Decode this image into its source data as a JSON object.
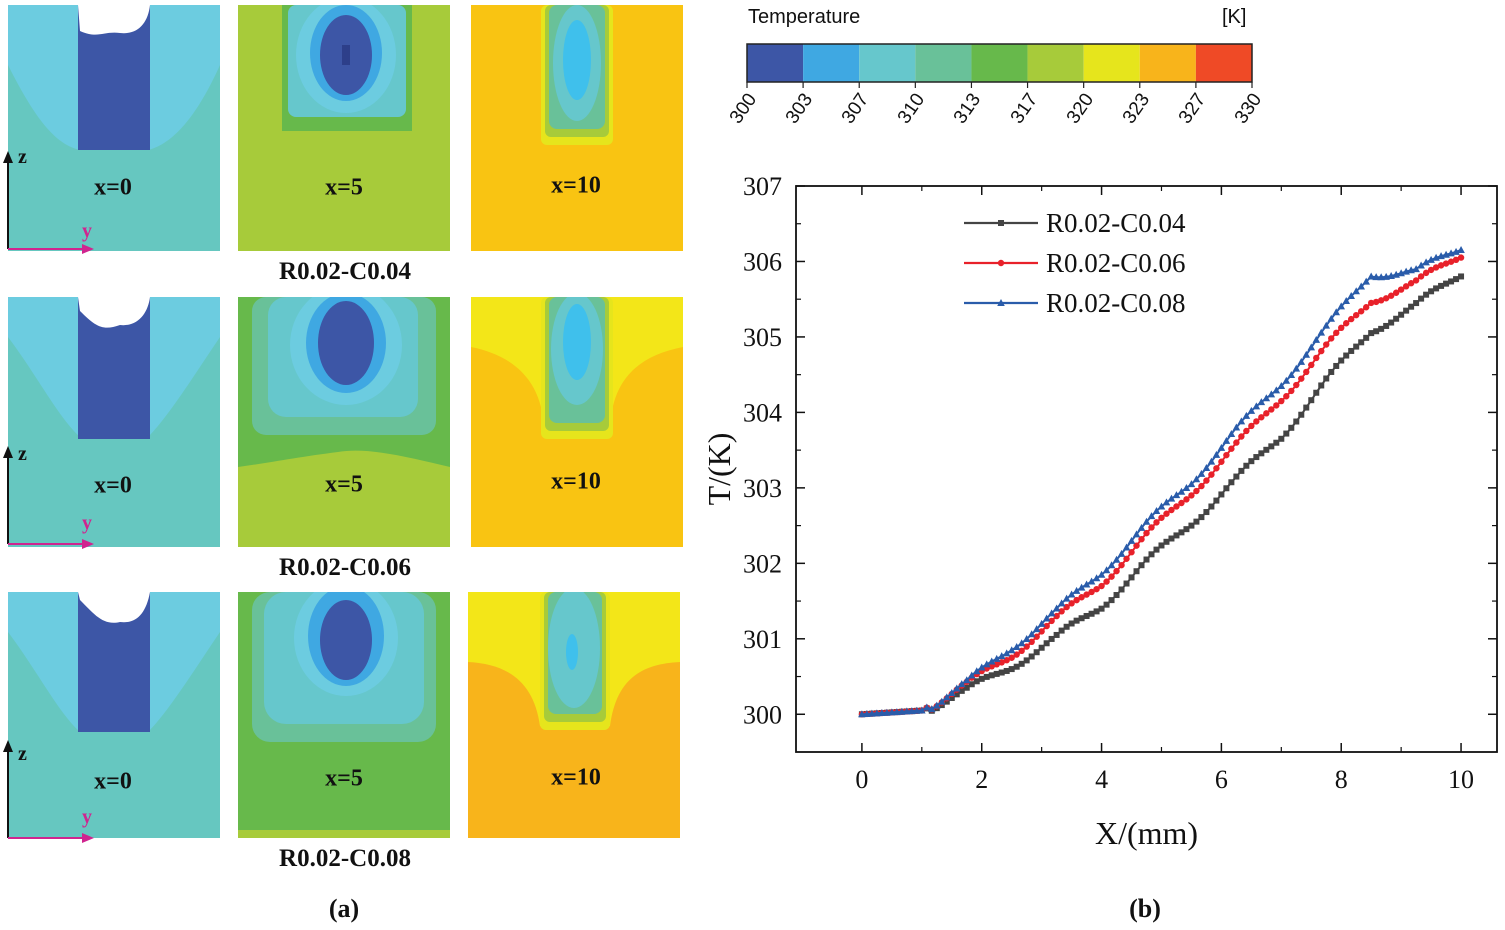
{
  "colorbar": {
    "title": "Temperature",
    "unit": "[K]",
    "ticks": [
      "300",
      "303",
      "307",
      "310",
      "313",
      "317",
      "320",
      "323",
      "327",
      "330"
    ],
    "colors": [
      "#3d56a6",
      "#3fa8e2",
      "#66c7cc",
      "#69c199",
      "#67b94b",
      "#a7cb3a",
      "#e6e51c",
      "#f8b41b",
      "#ef4a26"
    ]
  },
  "panel_a": {
    "rows": [
      {
        "label": "R0.02-C0.04",
        "x0": "x=0",
        "x5": "x=5",
        "x10": "x=10"
      },
      {
        "label": "R0.02-C0.06",
        "x0": "x=0",
        "x5": "x=5",
        "x10": "x=10"
      },
      {
        "label": "R0.02-C0.08",
        "x0": "x=0",
        "x5": "x=5",
        "x10": "x=10"
      }
    ],
    "axis_z": "z",
    "axis_y": "y",
    "caption": "(a)"
  },
  "panel_b": {
    "caption": "(b)"
  },
  "chart_data": {
    "type": "line",
    "xlabel": "X/(mm)",
    "ylabel": "T/(K)",
    "xlim": [
      -1.1,
      10.6
    ],
    "ylim": [
      299.5,
      307
    ],
    "xticks": [
      0,
      2,
      4,
      6,
      8,
      10
    ],
    "yticks": [
      300,
      301,
      302,
      303,
      304,
      305,
      306,
      307
    ],
    "legend_position": "top-left",
    "x": [
      0,
      1,
      1.75,
      2.5,
      3.25,
      4,
      4.75,
      5.5,
      6.25,
      7,
      7.75,
      8.5,
      9.25,
      10
    ],
    "series": [
      {
        "name": "R0.02-C0.04",
        "color": "#444444",
        "marker": "square",
        "values": [
          300.0,
          300.05,
          300.3,
          300.65,
          301.0,
          301.45,
          302.0,
          302.55,
          303.1,
          303.7,
          304.4,
          305.1,
          305.4,
          305.85
        ]
      },
      {
        "name": "R0.02-C0.06",
        "color": "#e8212a",
        "marker": "circle",
        "values": [
          300.0,
          300.05,
          300.38,
          300.8,
          301.25,
          301.75,
          302.35,
          302.95,
          303.55,
          304.2,
          304.85,
          305.5,
          305.7,
          306.1
        ]
      },
      {
        "name": "R0.02-C0.08",
        "color": "#2a5caa",
        "marker": "triangle",
        "values": [
          300.0,
          300.05,
          300.4,
          300.9,
          301.35,
          301.9,
          302.5,
          303.1,
          303.75,
          304.4,
          305.1,
          305.85,
          305.85,
          306.2
        ]
      }
    ]
  }
}
